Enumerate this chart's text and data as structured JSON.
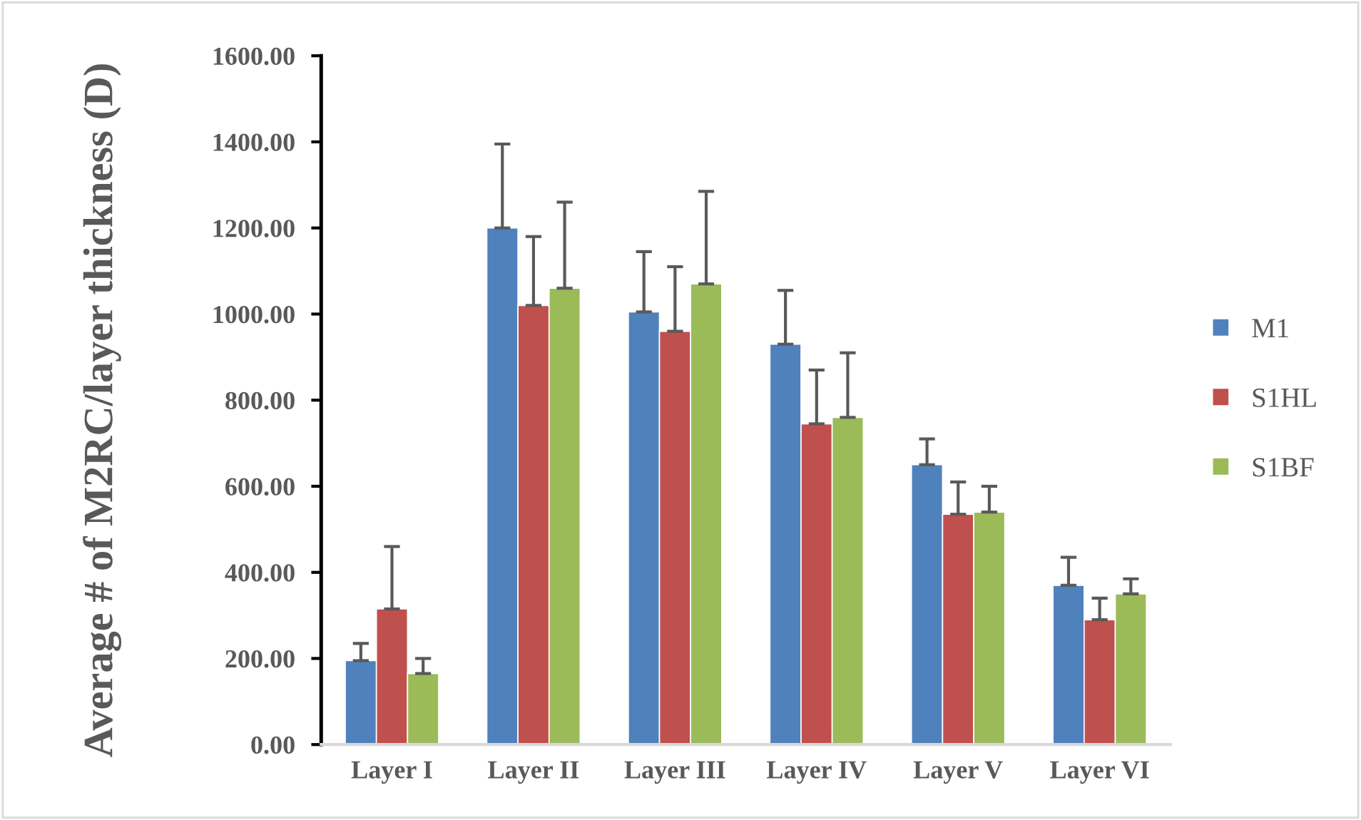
{
  "chart_data": {
    "type": "bar",
    "ylabel": "Average # of M2RC/layer thickness (D)",
    "categories": [
      "Layer I",
      "Layer II",
      "Layer III",
      "Layer IV",
      "Layer V",
      "Layer VI"
    ],
    "series": [
      {
        "name": "M1",
        "color": "#4f81bd",
        "values": [
          195,
          1200,
          1005,
          930,
          650,
          370
        ],
        "errors": [
          [
            195,
            235
          ],
          [
            1200,
            1395
          ],
          [
            1005,
            1145
          ],
          [
            930,
            1055
          ],
          [
            650,
            710
          ],
          [
            370,
            435
          ]
        ]
      },
      {
        "name": "S1HL",
        "color": "#c0504d",
        "values": [
          315,
          1020,
          960,
          745,
          535,
          290
        ],
        "errors": [
          [
            315,
            460
          ],
          [
            1020,
            1180
          ],
          [
            960,
            1110
          ],
          [
            745,
            870
          ],
          [
            535,
            610
          ],
          [
            290,
            340
          ]
        ]
      },
      {
        "name": "S1BF",
        "color": "#9bbb59",
        "values": [
          165,
          1060,
          1070,
          760,
          540,
          350
        ],
        "errors": [
          [
            165,
            200
          ],
          [
            1060,
            1260
          ],
          [
            1070,
            1285
          ],
          [
            760,
            910
          ],
          [
            540,
            600
          ],
          [
            350,
            385
          ]
        ]
      }
    ],
    "ylim": [
      0,
      1600
    ],
    "yticks": [
      {
        "value": 0,
        "label": "0.00"
      },
      {
        "value": 200,
        "label": "200.00"
      },
      {
        "value": 400,
        "label": "400.00"
      },
      {
        "value": 600,
        "label": "600.00"
      },
      {
        "value": 800,
        "label": "800.00"
      },
      {
        "value": 1000,
        "label": "1000.00"
      },
      {
        "value": 1200,
        "label": "1200.00"
      },
      {
        "value": 1400,
        "label": "1400.00"
      },
      {
        "value": 1600,
        "label": "1600.00"
      }
    ],
    "legend": "right",
    "grid": false
  }
}
